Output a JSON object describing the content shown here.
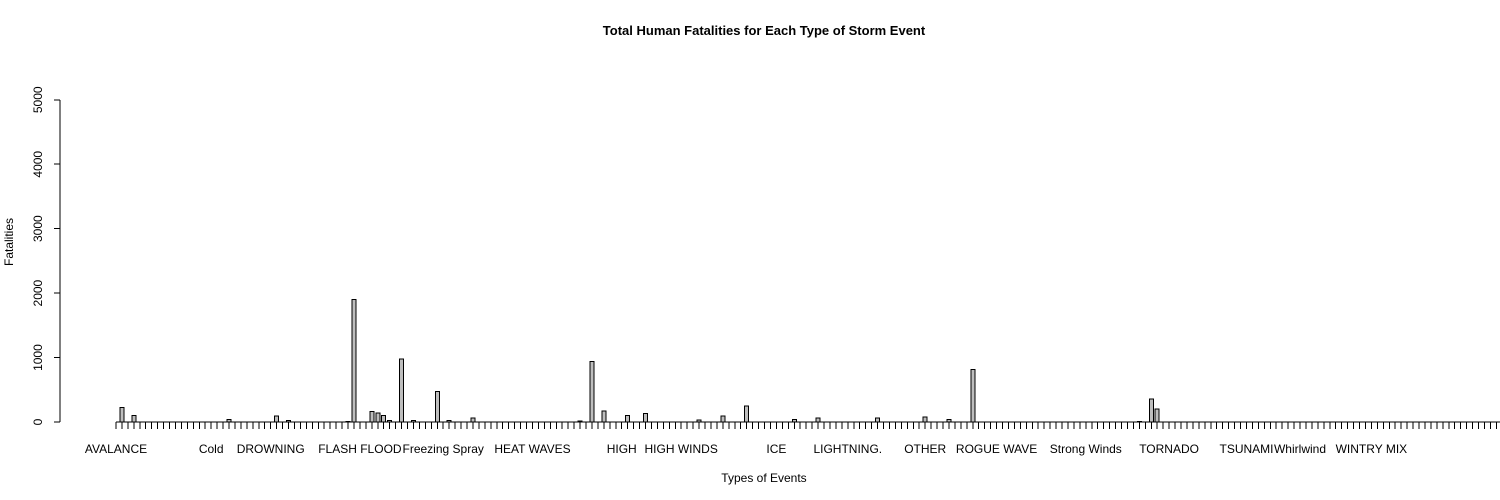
{
  "chart_data": {
    "type": "bar",
    "title": "Total Human Fatalities for Each Type of Storm Event",
    "xlabel": "Types of Events",
    "ylabel": "Fatalities",
    "ylim": [
      0,
      5633
    ],
    "yticks": [
      0,
      1000,
      2000,
      3000,
      4000,
      5000
    ],
    "category_count": 220,
    "category_labels": [
      {
        "index": 0,
        "label": "AVALANCE"
      },
      {
        "index": 16,
        "label": "Cold"
      },
      {
        "index": 26,
        "label": "DROWNING"
      },
      {
        "index": 41,
        "label": "FLASH FLOOD"
      },
      {
        "index": 55,
        "label": "Freezing Spray"
      },
      {
        "index": 70,
        "label": "HEAT WAVES"
      },
      {
        "index": 85,
        "label": "HIGH"
      },
      {
        "index": 95,
        "label": "HIGH WINDS"
      },
      {
        "index": 111,
        "label": "ICE"
      },
      {
        "index": 123,
        "label": "LIGHTNING."
      },
      {
        "index": 136,
        "label": "OTHER"
      },
      {
        "index": 148,
        "label": "ROGUE WAVE"
      },
      {
        "index": 163,
        "label": "Strong Winds"
      },
      {
        "index": 177,
        "label": "TORNADO"
      },
      {
        "index": 190,
        "label": "TSUNAMI"
      },
      {
        "index": 199,
        "label": "Whirlwind"
      },
      {
        "index": 211,
        "label": "WINTRY MIX"
      }
    ],
    "values": [
      0,
      224,
      0,
      101,
      0,
      0,
      0,
      0,
      0,
      0,
      0,
      0,
      0,
      0,
      0,
      0,
      0,
      0,
      0,
      35,
      0,
      0,
      0,
      0,
      0,
      0,
      0,
      95,
      0,
      20,
      0,
      0,
      0,
      0,
      0,
      0,
      0,
      0,
      0,
      10,
      1903,
      0,
      0,
      160,
      140,
      100,
      20,
      0,
      978,
      0,
      20,
      0,
      0,
      0,
      470,
      0,
      20,
      0,
      0,
      0,
      62,
      0,
      0,
      0,
      0,
      0,
      0,
      0,
      0,
      0,
      0,
      0,
      0,
      0,
      0,
      0,
      0,
      0,
      15,
      0,
      937,
      0,
      172,
      0,
      0,
      0,
      100,
      0,
      0,
      130,
      0,
      0,
      0,
      0,
      0,
      0,
      0,
      0,
      30,
      0,
      0,
      0,
      95,
      0,
      0,
      0,
      248,
      0,
      0,
      0,
      0,
      0,
      0,
      0,
      35,
      0,
      0,
      0,
      65,
      0,
      0,
      0,
      0,
      0,
      0,
      0,
      0,
      0,
      62,
      0,
      0,
      0,
      0,
      0,
      0,
      0,
      80,
      0,
      0,
      0,
      35,
      0,
      0,
      0,
      816,
      0,
      0,
      0,
      0,
      0,
      0,
      0,
      0,
      0,
      0,
      0,
      0,
      0,
      0,
      0,
      0,
      0,
      0,
      0,
      0,
      0,
      0,
      0,
      0,
      0,
      0,
      0,
      10,
      0,
      360,
      200,
      0,
      0,
      0,
      0,
      0,
      0,
      0,
      0,
      0,
      0,
      0,
      0,
      0,
      0,
      0,
      0,
      0,
      0,
      0,
      0,
      0,
      0,
      0,
      0,
      0,
      0,
      0,
      0,
      0,
      0,
      0,
      0,
      0,
      0,
      0,
      0,
      0,
      0,
      0,
      0,
      0,
      0,
      0,
      0,
      0,
      0,
      0,
      0,
      0,
      0,
      0,
      0,
      0,
      0,
      0,
      0,
      0,
      0,
      0,
      0,
      0,
      0,
      0
    ]
  }
}
